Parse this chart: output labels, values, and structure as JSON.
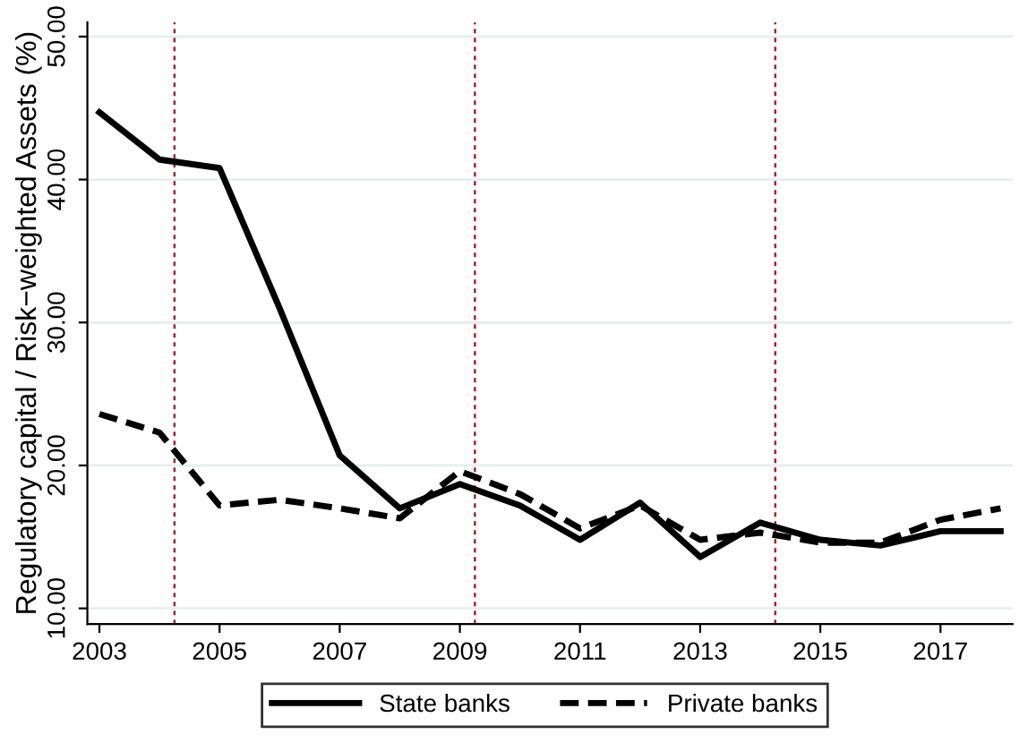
{
  "chart_data": {
    "type": "line",
    "ylabel": "Regulatory capital / Risk−weighted Assets (%)",
    "x": [
      2003,
      2004,
      2005,
      2006,
      2007,
      2008,
      2009,
      2010,
      2011,
      2012,
      2013,
      2014,
      2015,
      2016,
      2017,
      2018
    ],
    "series": [
      {
        "name": "State banks",
        "color": "#000000",
        "line_style": "solid",
        "values": [
          44.7,
          41.4,
          40.8,
          31.0,
          20.7,
          17.0,
          18.7,
          17.2,
          14.8,
          17.4,
          13.6,
          16.0,
          14.8,
          14.4,
          15.4,
          15.4
        ]
      },
      {
        "name": "Private banks",
        "color": "#000000",
        "line_style": "dashed",
        "values": [
          23.6,
          22.3,
          17.2,
          17.6,
          17.0,
          16.3,
          19.6,
          18.0,
          15.6,
          17.2,
          14.8,
          15.3,
          14.6,
          14.6,
          16.2,
          17.0
        ]
      }
    ],
    "xlim": [
      2002.8,
      2018.2
    ],
    "xticks": [
      2003,
      2005,
      2007,
      2009,
      2011,
      2013,
      2015,
      2017
    ],
    "ylim": [
      8.9,
      51
    ],
    "yticks": [
      {
        "value": 10,
        "label": "10.00"
      },
      {
        "value": 20,
        "label": "20.00"
      },
      {
        "value": 30,
        "label": "30.00"
      },
      {
        "value": 40,
        "label": "40.00"
      },
      {
        "value": 50,
        "label": "50.00"
      }
    ],
    "ref_lines": [
      {
        "axis": "x",
        "value": 2004.25,
        "color": "#a02828",
        "line_style": "dotted"
      },
      {
        "axis": "x",
        "value": 2009.25,
        "color": "#a02828",
        "line_style": "dotted"
      },
      {
        "axis": "x",
        "value": 2014.25,
        "color": "#a02828",
        "line_style": "dotted"
      }
    ],
    "grid": "y",
    "legend": "bottom"
  }
}
